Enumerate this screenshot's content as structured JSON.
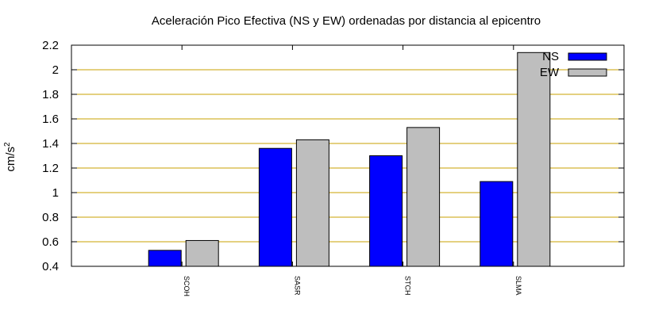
{
  "chart_data": {
    "type": "bar",
    "title": "Aceleración Pico Efectiva (NS y EW) ordenadas por distancia al epicentro",
    "xlabel": "",
    "ylabel": "cm/s",
    "ylabel_superscript": "2",
    "categories": [
      "SCOH",
      "SASR",
      "STCH",
      "SLMA"
    ],
    "series": [
      {
        "name": "NS",
        "values": [
          0.53,
          1.36,
          1.3,
          1.09
        ],
        "color": "#0000ff"
      },
      {
        "name": "EW",
        "values": [
          0.61,
          1.43,
          1.53,
          2.14
        ],
        "color": "#bebebe"
      }
    ],
    "ylim": [
      0.4,
      2.2
    ],
    "yticks": [
      0.4,
      0.6,
      0.8,
      1,
      1.2,
      1.4,
      1.6,
      1.8,
      2,
      2.2
    ],
    "ytick_labels": [
      "0.4",
      "0.6",
      "0.8",
      "1",
      "1.2",
      "1.4",
      "1.6",
      "1.8",
      "2",
      "2.2"
    ],
    "grid": true,
    "grid_color": "#c8a000",
    "legend": "top-right"
  }
}
